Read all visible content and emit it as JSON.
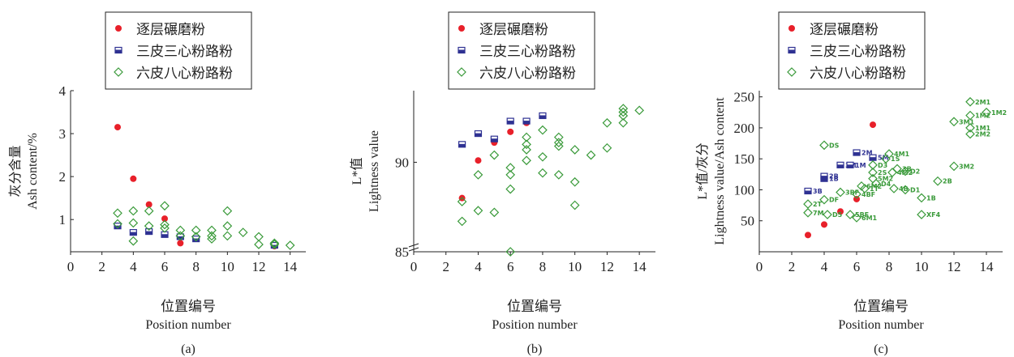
{
  "chart_data": [
    {
      "type": "scatter",
      "panel_label": "(a)",
      "xlabel_cn": "位置编号",
      "xlabel_en": "Position number",
      "ylabel_cn": "灰分含量",
      "ylabel_en": "Ash content/%",
      "xlim": [
        0,
        15
      ],
      "ylim": [
        0.25,
        4
      ],
      "x_ticks": [
        0,
        2,
        4,
        6,
        8,
        10,
        12,
        14
      ],
      "y_ticks": [
        1,
        2,
        3,
        4
      ],
      "legend": [
        "逐层碾磨粉",
        "三皮三心粉路粉",
        "六皮八心粉路粉"
      ],
      "series": [
        {
          "name": "逐层碾磨粉",
          "marker": "circle",
          "color": "#e8202a",
          "points": [
            [
              3,
              3.15
            ],
            [
              4,
              1.95
            ],
            [
              5,
              1.35
            ],
            [
              6,
              1.02
            ],
            [
              7,
              0.45
            ],
            [
              13,
              0.38
            ]
          ]
        },
        {
          "name": "三皮三心粉路粉",
          "marker": "square",
          "color": "#2e3192",
          "points": [
            [
              3,
              0.85
            ],
            [
              4,
              0.7
            ],
            [
              5,
              0.72
            ],
            [
              6,
              0.65
            ],
            [
              7,
              0.6
            ],
            [
              8,
              0.55
            ],
            [
              13,
              0.4
            ]
          ]
        },
        {
          "name": "六皮八心粉路粉",
          "marker": "diamond",
          "color": "#3a9a3a",
          "points": [
            [
              3,
              1.15
            ],
            [
              3,
              0.9
            ],
            [
              4,
              1.2
            ],
            [
              4,
              0.92
            ],
            [
              4,
              0.5
            ],
            [
              5,
              1.2
            ],
            [
              5,
              0.85
            ],
            [
              6,
              1.32
            ],
            [
              6,
              0.88
            ],
            [
              6,
              0.8
            ],
            [
              7,
              0.75
            ],
            [
              7,
              0.62
            ],
            [
              8,
              0.75
            ],
            [
              8,
              0.6
            ],
            [
              9,
              0.75
            ],
            [
              9,
              0.62
            ],
            [
              9,
              0.55
            ],
            [
              10,
              1.2
            ],
            [
              10,
              0.85
            ],
            [
              10,
              0.62
            ],
            [
              11,
              0.7
            ],
            [
              12,
              0.6
            ],
            [
              12,
              0.42
            ],
            [
              13,
              0.45
            ],
            [
              13,
              0.42
            ],
            [
              14,
              0.4
            ]
          ]
        }
      ]
    },
    {
      "type": "scatter",
      "panel_label": "(b)",
      "xlabel_cn": "位置编号",
      "xlabel_en": "Position number",
      "ylabel_cn": "L*值",
      "ylabel_en": "Lightness value",
      "xlim": [
        0,
        15
      ],
      "ylim": [
        85,
        94
      ],
      "axis_break": true,
      "x_ticks": [
        0,
        2,
        4,
        6,
        8,
        10,
        12,
        14
      ],
      "y_ticks": [
        85,
        90
      ],
      "legend": [
        "逐层碾磨粉",
        "三皮三心粉路粉",
        "六皮八心粉路粉"
      ],
      "series": [
        {
          "name": "逐层碾磨粉",
          "marker": "circle",
          "color": "#e8202a",
          "points": [
            [
              3,
              88.0
            ],
            [
              4,
              90.1
            ],
            [
              5,
              91.1
            ],
            [
              6,
              91.7
            ],
            [
              7,
              92.2
            ]
          ]
        },
        {
          "name": "三皮三心粉路粉",
          "marker": "square",
          "color": "#2e3192",
          "points": [
            [
              3,
              91.0
            ],
            [
              4,
              91.6
            ],
            [
              5,
              91.3
            ],
            [
              6,
              92.3
            ],
            [
              7,
              92.3
            ],
            [
              8,
              92.6
            ]
          ]
        },
        {
          "name": "六皮八心粉路粉",
          "marker": "diamond",
          "color": "#3a9a3a",
          "points": [
            [
              3,
              87.8
            ],
            [
              3,
              86.7
            ],
            [
              4,
              89.3
            ],
            [
              4,
              87.3
            ],
            [
              5,
              90.4
            ],
            [
              5,
              87.2
            ],
            [
              6,
              89.7
            ],
            [
              6,
              89.3
            ],
            [
              6,
              88.5
            ],
            [
              6,
              85.0
            ],
            [
              7,
              91.4
            ],
            [
              7,
              91.0
            ],
            [
              7,
              90.7
            ],
            [
              7,
              90.1
            ],
            [
              8,
              91.8
            ],
            [
              8,
              90.3
            ],
            [
              8,
              89.4
            ],
            [
              9,
              91.4
            ],
            [
              9,
              91.1
            ],
            [
              9,
              90.9
            ],
            [
              9,
              89.3
            ],
            [
              10,
              90.7
            ],
            [
              10,
              88.9
            ],
            [
              10,
              87.6
            ],
            [
              11,
              90.4
            ],
            [
              12,
              92.2
            ],
            [
              12,
              90.8
            ],
            [
              13,
              93.0
            ],
            [
              13,
              92.8
            ],
            [
              13,
              92.6
            ],
            [
              13,
              92.2
            ],
            [
              14,
              92.9
            ]
          ]
        }
      ]
    },
    {
      "type": "scatter",
      "panel_label": "(c)",
      "xlabel_cn": "位置编号",
      "xlabel_en": "Position number",
      "ylabel_cn": "L*值/灰分",
      "ylabel_en": "Lightness value/Ash content",
      "xlim": [
        0,
        15
      ],
      "ylim": [
        0,
        260
      ],
      "x_ticks": [
        0,
        2,
        4,
        6,
        8,
        10,
        12,
        14
      ],
      "y_ticks": [
        50,
        100,
        150,
        200,
        250
      ],
      "legend": [
        "逐层碾磨粉",
        "三皮三心粉路粉",
        "六皮八心粉路粉"
      ],
      "series": [
        {
          "name": "逐层碾磨粉",
          "marker": "circle",
          "color": "#e8202a",
          "points": [
            [
              3,
              27
            ],
            [
              4,
              44
            ],
            [
              5,
              65
            ],
            [
              6,
              85
            ],
            [
              7,
              205
            ]
          ]
        },
        {
          "name": "三皮三心粉路粉",
          "marker": "square",
          "color": "#2e3192",
          "points": [
            [
              3,
              98,
              "3B"
            ],
            [
              4,
              118,
              "1B"
            ],
            [
              4,
              122,
              "2B"
            ],
            [
              5,
              140,
              "3M"
            ],
            [
              5.6,
              140,
              "1M"
            ],
            [
              6,
              160,
              "2M"
            ],
            [
              7,
              152,
              "5M"
            ]
          ]
        },
        {
          "name": "六皮八心粉路粉",
          "marker": "diamond",
          "color": "#3a9a3a",
          "points": [
            [
              3,
              77,
              "2T"
            ],
            [
              3,
              63,
              "7M"
            ],
            [
              4,
              172,
              "DS"
            ],
            [
              4,
              84,
              "DF"
            ],
            [
              4.2,
              60,
              "D5"
            ],
            [
              5,
              96,
              "3BF"
            ],
            [
              5.6,
              60,
              "5BF"
            ],
            [
              6,
              55,
              "6M1"
            ],
            [
              6,
              93,
              "4BF"
            ],
            [
              6.3,
              106,
              "6M2"
            ],
            [
              6.5,
              102,
              "1T"
            ],
            [
              7,
              140,
              "D3"
            ],
            [
              7,
              118,
              "5M2"
            ],
            [
              7.2,
              110,
              "D4"
            ],
            [
              7,
              128,
              "2S"
            ],
            [
              7.8,
              150,
              "1S"
            ],
            [
              8,
              158,
              "4M1"
            ],
            [
              8.2,
              128,
              "4M2"
            ],
            [
              8.3,
              102,
              "4B"
            ],
            [
              8.5,
              134,
              "3B"
            ],
            [
              9,
              130,
              "D2"
            ],
            [
              9,
              100,
              "D1"
            ],
            [
              10,
              87,
              "1B"
            ],
            [
              10,
              60,
              "XF4"
            ],
            [
              11,
              114,
              "2B"
            ],
            [
              12,
              138,
              "3M2"
            ],
            [
              12,
              210,
              "3M1"
            ],
            [
              13,
              242,
              "2M1"
            ],
            [
              13,
              220,
              "1M2"
            ],
            [
              13,
              200,
              "1M1"
            ],
            [
              13,
              190,
              "2M2"
            ],
            [
              14,
              225,
              "1M2"
            ]
          ]
        }
      ]
    }
  ]
}
